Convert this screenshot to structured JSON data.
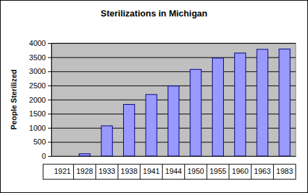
{
  "chart_data": {
    "type": "bar",
    "title": "Sterilizations in Michigan",
    "y_label": "People Sterilized",
    "categories": [
      "1921",
      "1928",
      "1933",
      "1938",
      "1941",
      "1944",
      "1950",
      "1955",
      "1960",
      "1963",
      "1983"
    ],
    "values": [
      0,
      80,
      1070,
      1830,
      2180,
      2480,
      3070,
      3470,
      3650,
      3780,
      3790
    ],
    "color": "#9999ff",
    "ylim": [
      0,
      4000
    ],
    "yticks": [
      0,
      500,
      1000,
      1500,
      2000,
      2500,
      3000,
      3500,
      4000
    ],
    "grid": true
  }
}
